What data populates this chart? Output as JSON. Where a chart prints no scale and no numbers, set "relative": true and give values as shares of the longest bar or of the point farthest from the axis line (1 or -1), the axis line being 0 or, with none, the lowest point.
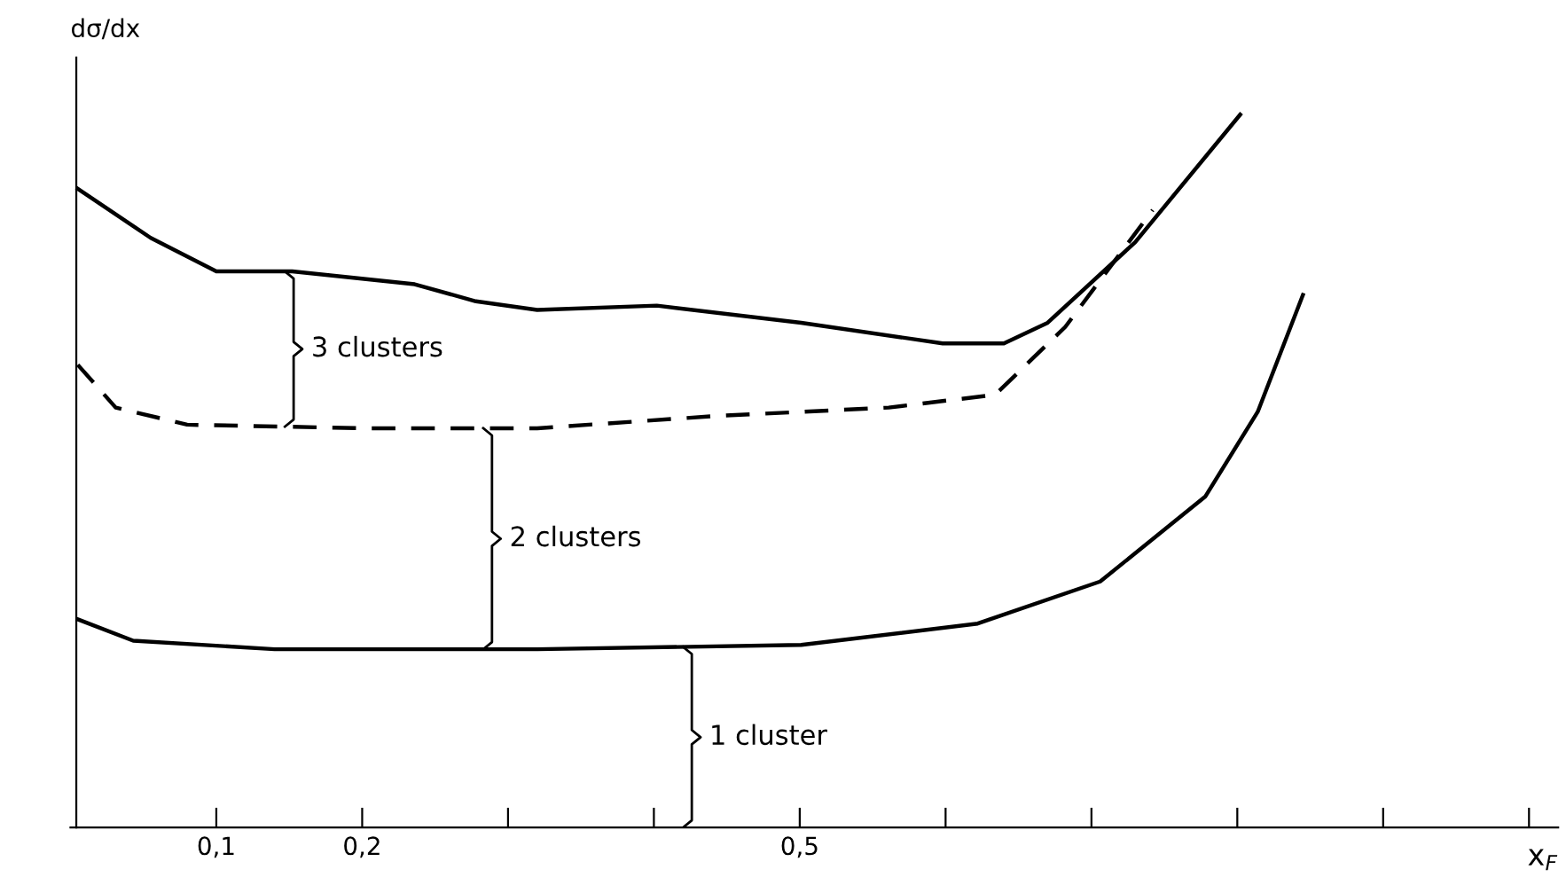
{
  "chart_data": {
    "type": "line",
    "relative": true,
    "xlabel": "x$_{F}$",
    "ylabel": "dσ/dx",
    "tick_labels": "x",
    "grid": false,
    "legend": false,
    "xlim": [
      0,
      1.02
    ],
    "xticks": [
      {
        "value": 0.1,
        "label": "0,1"
      },
      {
        "value": 0.2,
        "label": "0,2"
      },
      {
        "value": 0.3,
        "label": null
      },
      {
        "value": 0.4,
        "label": null
      },
      {
        "value": 0.5,
        "label": "0,5"
      },
      {
        "value": 0.6,
        "label": null
      },
      {
        "value": 0.7,
        "label": null
      },
      {
        "value": 0.8,
        "label": null
      },
      {
        "value": 0.9,
        "label": null
      },
      {
        "value": 1.0,
        "label": null
      }
    ],
    "series": [
      {
        "color": "#000000",
        "line_style": "solid",
        "x": [
          0.005,
          0.055,
          0.1,
          0.152,
          0.236,
          0.278,
          0.32,
          0.402,
          0.501,
          0.598,
          0.64,
          0.67,
          0.73,
          0.802
        ],
        "values": [
          0.896,
          0.827,
          0.78,
          0.78,
          0.762,
          0.738,
          0.726,
          0.732,
          0.708,
          0.679,
          0.679,
          0.708,
          0.821,
          1.0
        ]
      },
      {
        "color": "#000000",
        "line_style": "dashed",
        "x": [
          0.005,
          0.031,
          0.08,
          0.2,
          0.32,
          0.441,
          0.561,
          0.634,
          0.682,
          0.742
        ],
        "values": [
          0.649,
          0.589,
          0.565,
          0.56,
          0.56,
          0.577,
          0.589,
          0.607,
          0.702,
          0.866
        ]
      },
      {
        "color": "#000000",
        "line_style": "solid",
        "x": [
          0.005,
          0.043,
          0.14,
          0.32,
          0.501,
          0.622,
          0.706,
          0.778,
          0.814,
          0.845
        ],
        "values": [
          0.292,
          0.262,
          0.25,
          0.25,
          0.256,
          0.286,
          0.345,
          0.464,
          0.583,
          0.747
        ]
      }
    ],
    "annotations": [
      "3 clusters",
      "2 clusters",
      "1 cluster"
    ]
  }
}
